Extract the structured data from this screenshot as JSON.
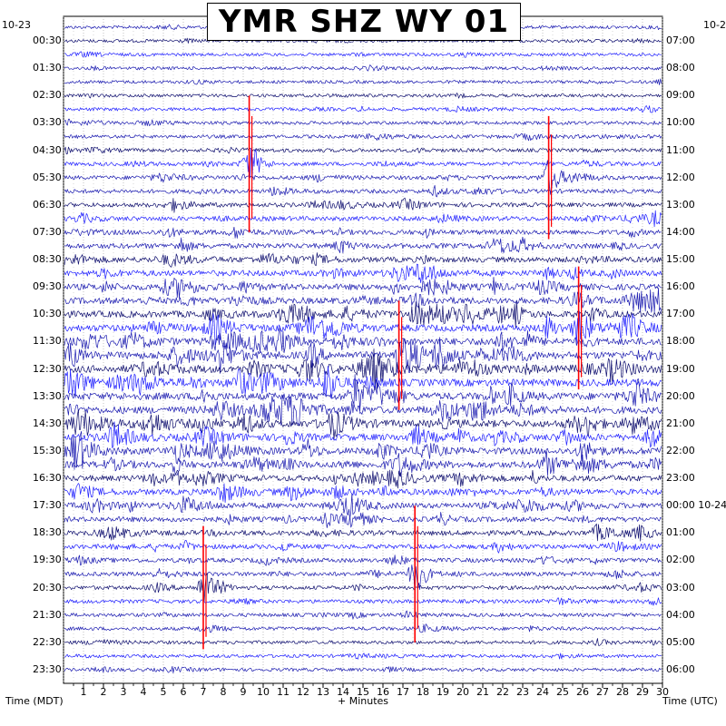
{
  "header": {
    "title": "YMR SHZ WY 01",
    "left_date": "10-23",
    "right_date": "10-2"
  },
  "axes": {
    "left_label": "Time (MDT)",
    "bottom_label": "+ Minutes",
    "right_label": "Time (UTC)"
  },
  "colors": {
    "trace_dark": "#0d0d6e",
    "trace_mid": "#1a1ab0",
    "trace_blue": "#1f1fff",
    "clip": "#ff0000",
    "grid": "#9a9a9a"
  },
  "chart_data": {
    "type": "line",
    "title": "YMR SHZ WY 01",
    "xlabel": "+ Minutes",
    "ylabel": "Time (MDT)",
    "xlim": [
      0,
      30
    ],
    "x_ticks": [
      "1",
      "2",
      "3",
      "4",
      "5",
      "6",
      "7",
      "8",
      "9",
      "10",
      "11",
      "12",
      "13",
      "14",
      "15",
      "16",
      "17",
      "18",
      "19",
      "20",
      "21",
      "22",
      "23",
      "24",
      "25",
      "26",
      "27",
      "28",
      "29",
      "30"
    ],
    "left_time_labels": [
      "00:30",
      "01:30",
      "02:30",
      "03:30",
      "04:30",
      "05:30",
      "06:30",
      "07:30",
      "08:30",
      "09:30",
      "10:30",
      "11:30",
      "12:30",
      "13:30",
      "14:30",
      "15:30",
      "16:30",
      "17:30",
      "18:30",
      "19:30",
      "20:30",
      "21:30",
      "22:30",
      "23:30"
    ],
    "right_time_labels": [
      "07:00",
      "08:00",
      "09:00",
      "10:00",
      "11:00",
      "12:00",
      "13:00",
      "14:00",
      "15:00",
      "16:00",
      "17:00",
      "18:00",
      "19:00",
      "20:00",
      "21:00",
      "22:00",
      "23:00",
      "00:00 10-24",
      "01:00",
      "02:00",
      "03:00",
      "04:00",
      "05:00",
      "06:00"
    ],
    "rows_per_hour": 2,
    "row_count": 48,
    "grid": true,
    "events": [
      {
        "minute": 9.3,
        "row": 10,
        "amplitude": 1.0
      },
      {
        "minute": 24.3,
        "row": 11,
        "amplitude": 0.9
      },
      {
        "minute": 17.6,
        "row": 40,
        "amplitude": 1.0
      },
      {
        "minute": 7.0,
        "row": 41,
        "amplitude": 0.9
      },
      {
        "minute": 25.8,
        "row": 22,
        "amplitude": 0.9
      },
      {
        "minute": 16.8,
        "row": 24,
        "amplitude": 0.8
      }
    ]
  }
}
